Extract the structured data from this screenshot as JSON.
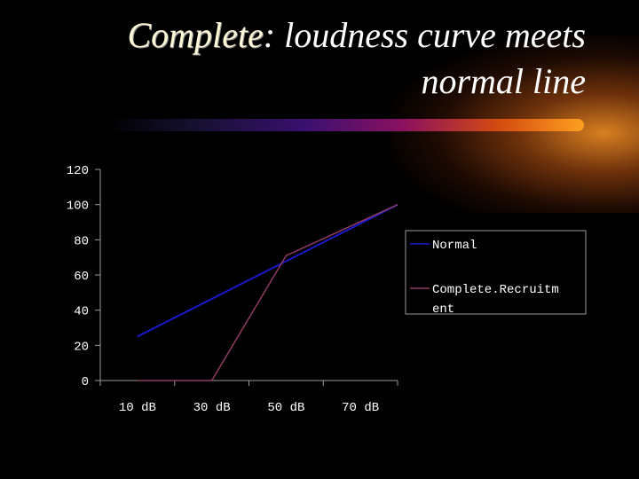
{
  "title": {
    "keyword": "Complete",
    "rest_line1": ": loudness curve meets",
    "line2": "normal line"
  },
  "colors": {
    "normal": "#1a1acc",
    "complete": "#8e3a63",
    "axis": "#9a9a9a",
    "text": "#ffffff"
  },
  "chart_data": {
    "type": "line",
    "categories": [
      "10 dB",
      "30 dB",
      "50 dB",
      "70 dB"
    ],
    "x": [
      0,
      1,
      2,
      3
    ],
    "ylim": [
      0,
      120
    ],
    "yticks": [
      0,
      20,
      40,
      60,
      80,
      100,
      120
    ],
    "grid": false,
    "legend_position": "right",
    "series": [
      {
        "name": "Normal",
        "points": [
          [
            0,
            25
          ],
          [
            3.5,
            100
          ]
        ]
      },
      {
        "name": "Complete.Recruitm ent",
        "points": [
          [
            0,
            0
          ],
          [
            1,
            0
          ],
          [
            2,
            71
          ],
          [
            3.5,
            100
          ]
        ]
      }
    ]
  },
  "legend": {
    "label_normal": "Normal",
    "label_complete_line1": "Complete.Recruitm",
    "label_complete_line2": "ent"
  }
}
